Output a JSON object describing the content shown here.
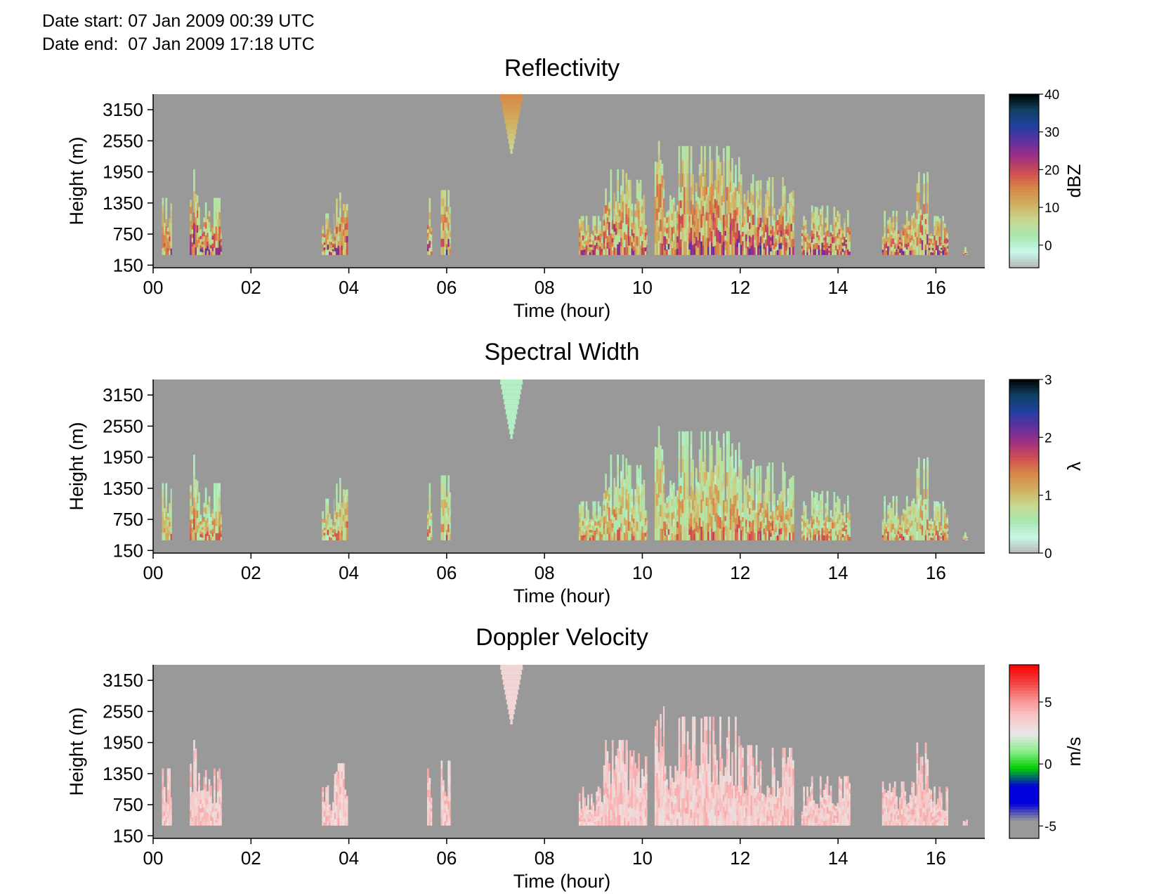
{
  "header": {
    "date_start": "Date start: 07 Jan 2009 00:39 UTC",
    "date_end": "Date end:  07 Jan 2009 17:18 UTC"
  },
  "background_color": "#999999",
  "chart_data": [
    {
      "type": "heatmap",
      "title": "Reflectivity",
      "xlabel": "Time (hour)",
      "ylabel": "Height (m)",
      "xlim": [
        0,
        17
      ],
      "ylim": [
        100,
        3450
      ],
      "x_ticks": [
        "00",
        "02",
        "04",
        "06",
        "08",
        "10",
        "12",
        "14",
        "16"
      ],
      "y_ticks": [
        "150",
        "750",
        "1350",
        "1950",
        "2550",
        "3150"
      ],
      "colorbar": {
        "label": "dBZ",
        "range": [
          -6,
          40
        ],
        "ticks": [
          "0",
          "10",
          "20",
          "30",
          "40"
        ],
        "stops": [
          "#b8b8b8",
          "#c8f8e8",
          "#a8e8b0",
          "#c8d890",
          "#d0b060",
          "#d88848",
          "#d05050",
          "#a03080",
          "#6030a0",
          "#2040a0",
          "#104060",
          "#000000"
        ]
      },
      "palette": "reflectivity"
    },
    {
      "type": "heatmap",
      "title": "Spectral Width",
      "xlabel": "Time (hour)",
      "ylabel": "Height (m)",
      "xlim": [
        0,
        17
      ],
      "ylim": [
        100,
        3450
      ],
      "x_ticks": [
        "00",
        "02",
        "04",
        "06",
        "08",
        "10",
        "12",
        "14",
        "16"
      ],
      "y_ticks": [
        "150",
        "750",
        "1350",
        "1950",
        "2550",
        "3150"
      ],
      "colorbar": {
        "label": "λ",
        "range": [
          0,
          3
        ],
        "ticks": [
          "0",
          "1",
          "2",
          "3"
        ],
        "stops": [
          "#b8b8b8",
          "#c8f8e8",
          "#a8e8b0",
          "#c8d890",
          "#d0b060",
          "#d88848",
          "#d05050",
          "#a03080",
          "#6030a0",
          "#2040a0",
          "#104060",
          "#000000"
        ]
      },
      "palette": "width"
    },
    {
      "type": "heatmap",
      "title": "Doppler Velocity",
      "xlabel": "Time (hour)",
      "ylabel": "Height (m)",
      "xlim": [
        0,
        17
      ],
      "ylim": [
        100,
        3450
      ],
      "x_ticks": [
        "00",
        "02",
        "04",
        "06",
        "08",
        "10",
        "12",
        "14",
        "16"
      ],
      "y_ticks": [
        "150",
        "750",
        "1350",
        "1950",
        "2550",
        "3150"
      ],
      "colorbar": {
        "label": "m/s",
        "range": [
          -6,
          8
        ],
        "ticks": [
          "-5",
          "0",
          "5"
        ],
        "stops": [
          "#999999",
          "#999999",
          "#0000dd",
          "#0000dd",
          "#00cc00",
          "#88ee88",
          "#e8e8e8",
          "#f8c8c8",
          "#f89090",
          "#f04040",
          "#ff0000"
        ]
      },
      "palette": "velocity"
    }
  ],
  "echo_segments": [
    {
      "t0": 0.18,
      "t1": 0.38,
      "top": 1450
    },
    {
      "t0": 0.75,
      "t1": 0.92,
      "top": 2000
    },
    {
      "t0": 0.92,
      "t1": 1.4,
      "top": 1450
    },
    {
      "t0": 3.45,
      "t1": 3.7,
      "top": 1150
    },
    {
      "t0": 3.7,
      "t1": 3.98,
      "top": 1550
    },
    {
      "t0": 5.6,
      "t1": 5.7,
      "top": 1450
    },
    {
      "t0": 5.88,
      "t1": 6.08,
      "top": 1600
    },
    {
      "t0": 8.7,
      "t1": 9.2,
      "top": 1100
    },
    {
      "t0": 9.2,
      "t1": 9.7,
      "top": 2000
    },
    {
      "t0": 9.7,
      "t1": 10.1,
      "top": 1800
    },
    {
      "t0": 10.25,
      "t1": 10.45,
      "top": 2650
    },
    {
      "t0": 10.45,
      "t1": 10.7,
      "top": 1500
    },
    {
      "t0": 10.7,
      "t1": 12.0,
      "top": 2450
    },
    {
      "t0": 12.0,
      "t1": 12.4,
      "top": 1900
    },
    {
      "t0": 12.4,
      "t1": 13.1,
      "top": 1850
    },
    {
      "t0": 13.25,
      "t1": 13.45,
      "top": 1100
    },
    {
      "t0": 13.45,
      "t1": 14.25,
      "top": 1300
    },
    {
      "t0": 14.9,
      "t1": 15.6,
      "top": 1200
    },
    {
      "t0": 15.6,
      "t1": 15.85,
      "top": 1950
    },
    {
      "t0": 15.85,
      "t1": 16.25,
      "top": 1100
    },
    {
      "t0": 16.55,
      "t1": 16.65,
      "top": 500
    }
  ],
  "fall_streak": {
    "t0": 7.1,
    "t1": 7.55,
    "bottom": 2300
  }
}
